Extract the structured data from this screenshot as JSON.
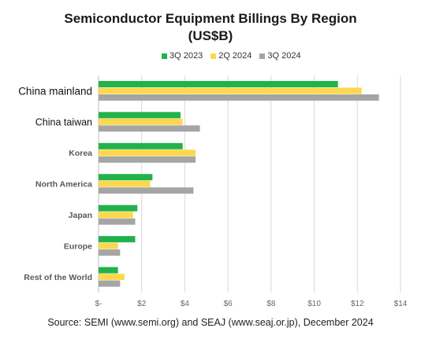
{
  "chart_data": {
    "type": "bar",
    "orientation": "horizontal",
    "title": "Semiconductor Equipment Billings By Region",
    "subtitle": "(US$B)",
    "categories": [
      "China mainland",
      "China taiwan",
      "Korea",
      "North America",
      "Japan",
      "Europe",
      "Rest of the World"
    ],
    "series": [
      {
        "name": "3Q 2023",
        "color": "#21b24b",
        "values": [
          11.1,
          3.8,
          3.9,
          2.5,
          1.8,
          1.7,
          0.9
        ]
      },
      {
        "name": "2Q 2024",
        "color": "#fdd84f",
        "values": [
          12.2,
          3.9,
          4.5,
          2.4,
          1.6,
          0.9,
          1.2
        ]
      },
      {
        "name": "3Q 2024",
        "color": "#a5a5a5",
        "values": [
          13.0,
          4.7,
          4.5,
          4.4,
          1.7,
          1.0,
          1.0
        ]
      }
    ],
    "xlim": [
      0,
      14
    ],
    "xticks": [
      0,
      2,
      4,
      6,
      8,
      10,
      12,
      14
    ],
    "xtick_labels": [
      "$-",
      "$2",
      "$4",
      "$6",
      "$8",
      "$10",
      "$12",
      "$14"
    ],
    "grid": "vertical",
    "legend_position": "top-center",
    "source": "Source: SEMI (www.semi.org) and SEAJ (www.seaj.or.jp), December 2024"
  }
}
